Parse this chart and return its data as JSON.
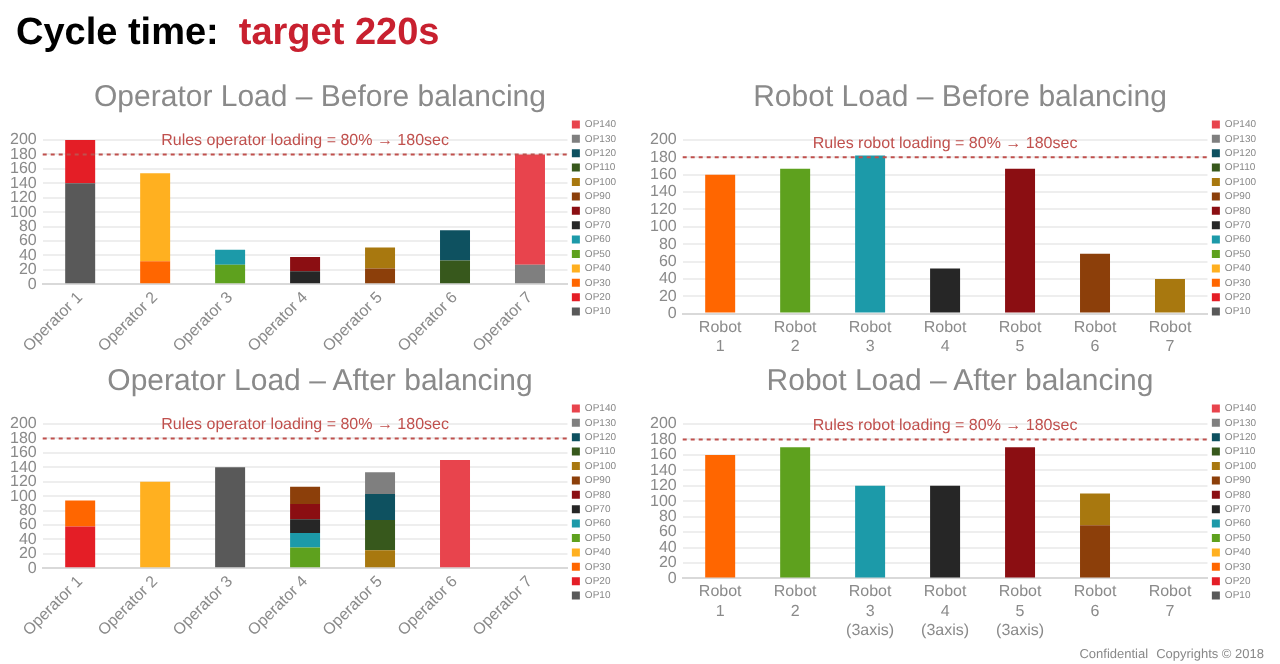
{
  "chart_data": [
    {
      "type": "bar",
      "title": "Operator Load – Before balancing",
      "stacked": true,
      "legend": "right",
      "grid": "y",
      "annotations": [
        "Cycle time:",
        "target 220s"
      ],
      "categories": [
        "Operator 1",
        "Operator 2",
        "Operator 3",
        "Operator 4",
        "Operator 5",
        "Operator 6",
        "Operator 7"
      ],
      "ylim": [
        0,
        200
      ],
      "yticks": [
        0,
        20,
        40,
        60,
        80,
        100,
        120,
        140,
        160,
        180,
        200
      ],
      "ref_lines": [
        {
          "axis": "y",
          "value": 180,
          "label": "Rules operator loading = 80% → 180sec",
          "color": "#c0504d",
          "line_style": "dotted"
        }
      ],
      "series": [
        {
          "name": "OP10",
          "color": "#595959",
          "values": [
            140,
            null,
            null,
            null,
            null,
            null,
            null
          ]
        },
        {
          "name": "OP20",
          "color": "#e41e26",
          "values": [
            60,
            null,
            null,
            null,
            null,
            null,
            null
          ]
        },
        {
          "name": "OP30",
          "color": "#ff6600",
          "values": [
            null,
            32,
            null,
            null,
            null,
            null,
            null
          ]
        },
        {
          "name": "OP40",
          "color": "#ffb020",
          "values": [
            null,
            122,
            null,
            null,
            null,
            null,
            null
          ]
        },
        {
          "name": "OP50",
          "color": "#5ea11e",
          "values": [
            null,
            null,
            27,
            null,
            null,
            null,
            null
          ]
        },
        {
          "name": "OP60",
          "color": "#1c9aa9",
          "values": [
            null,
            null,
            21,
            null,
            null,
            null,
            null
          ]
        },
        {
          "name": "OP70",
          "color": "#262626",
          "values": [
            null,
            null,
            null,
            18,
            null,
            null,
            null
          ]
        },
        {
          "name": "OP80",
          "color": "#8b0e12",
          "values": [
            null,
            null,
            null,
            20,
            null,
            null,
            null
          ]
        },
        {
          "name": "OP90",
          "color": "#8c3f0a",
          "values": [
            null,
            null,
            null,
            null,
            22,
            null,
            null
          ]
        },
        {
          "name": "OP100",
          "color": "#a8780f",
          "values": [
            null,
            null,
            null,
            null,
            29,
            null,
            null
          ]
        },
        {
          "name": "OP110",
          "color": "#37581c",
          "values": [
            null,
            null,
            null,
            null,
            null,
            33,
            null
          ]
        },
        {
          "name": "OP120",
          "color": "#0e5160",
          "values": [
            null,
            null,
            null,
            null,
            null,
            42,
            null
          ]
        },
        {
          "name": "OP130",
          "color": "#7f7f7f",
          "values": [
            null,
            null,
            null,
            null,
            null,
            null,
            27
          ]
        },
        {
          "name": "OP140",
          "color": "#e8444d",
          "values": [
            null,
            null,
            null,
            null,
            null,
            null,
            153
          ]
        }
      ]
    },
    {
      "type": "bar",
      "title": "Robot Load – Before balancing",
      "stacked": true,
      "legend": "right",
      "grid": "y",
      "categories": [
        "Robot 1",
        "Robot 2",
        "Robot 3",
        "Robot 4",
        "Robot 5",
        "Robot 6",
        "Robot 7"
      ],
      "ylim": [
        0,
        200
      ],
      "yticks": [
        0,
        20,
        40,
        60,
        80,
        100,
        120,
        140,
        160,
        180,
        200
      ],
      "ref_lines": [
        {
          "axis": "y",
          "value": 180,
          "label": "Rules robot loading = 80% → 180sec",
          "color": "#c0504d",
          "line_style": "dotted"
        }
      ],
      "series": [
        {
          "name": "OP10",
          "color": "#595959",
          "values": [
            null,
            null,
            null,
            null,
            null,
            null,
            null
          ]
        },
        {
          "name": "OP20",
          "color": "#e41e26",
          "values": [
            null,
            null,
            null,
            null,
            null,
            null,
            null
          ]
        },
        {
          "name": "OP30",
          "color": "#ff6600",
          "values": [
            160,
            null,
            null,
            null,
            null,
            null,
            null
          ]
        },
        {
          "name": "OP40",
          "color": "#ffb020",
          "values": [
            null,
            null,
            null,
            null,
            null,
            null,
            null
          ]
        },
        {
          "name": "OP50",
          "color": "#5ea11e",
          "values": [
            null,
            167,
            null,
            null,
            null,
            null,
            null
          ]
        },
        {
          "name": "OP60",
          "color": "#1c9aa9",
          "values": [
            null,
            null,
            182,
            null,
            null,
            null,
            null
          ]
        },
        {
          "name": "OP70",
          "color": "#262626",
          "values": [
            null,
            null,
            null,
            52,
            null,
            null,
            null
          ]
        },
        {
          "name": "OP80",
          "color": "#8b0e12",
          "values": [
            null,
            null,
            null,
            null,
            167,
            null,
            null
          ]
        },
        {
          "name": "OP90",
          "color": "#8c3f0a",
          "values": [
            null,
            null,
            null,
            null,
            null,
            69,
            null
          ]
        },
        {
          "name": "OP100",
          "color": "#a8780f",
          "values": [
            null,
            null,
            null,
            null,
            null,
            null,
            40
          ]
        },
        {
          "name": "OP110",
          "color": "#37581c",
          "values": [
            null,
            null,
            null,
            null,
            null,
            null,
            null
          ]
        },
        {
          "name": "OP120",
          "color": "#0e5160",
          "values": [
            null,
            null,
            null,
            null,
            null,
            null,
            null
          ]
        },
        {
          "name": "OP130",
          "color": "#7f7f7f",
          "values": [
            null,
            null,
            null,
            null,
            null,
            null,
            null
          ]
        },
        {
          "name": "OP140",
          "color": "#e8444d",
          "values": [
            null,
            null,
            null,
            null,
            null,
            null,
            null
          ]
        }
      ]
    },
    {
      "type": "bar",
      "title": "Operator Load – After balancing",
      "stacked": true,
      "legend": "right",
      "grid": "y",
      "categories": [
        "Operator 1",
        "Operator 2",
        "Operator 3",
        "Operator 4",
        "Operator 5",
        "Operator 6",
        "Operator 7"
      ],
      "ylim": [
        0,
        200
      ],
      "yticks": [
        0,
        20,
        40,
        60,
        80,
        100,
        120,
        140,
        160,
        180,
        200
      ],
      "ref_lines": [
        {
          "axis": "y",
          "value": 180,
          "label": "Rules operator loading = 80% → 180sec",
          "color": "#c0504d",
          "line_style": "dotted"
        }
      ],
      "series": [
        {
          "name": "OP10",
          "color": "#595959",
          "values": [
            null,
            null,
            140,
            null,
            null,
            null,
            null
          ]
        },
        {
          "name": "OP20",
          "color": "#e41e26",
          "values": [
            58,
            null,
            null,
            null,
            null,
            null,
            null
          ]
        },
        {
          "name": "OP30",
          "color": "#ff6600",
          "values": [
            36,
            null,
            null,
            null,
            null,
            null,
            null
          ]
        },
        {
          "name": "OP40",
          "color": "#ffb020",
          "values": [
            null,
            120,
            null,
            null,
            null,
            null,
            null
          ]
        },
        {
          "name": "OP50",
          "color": "#5ea11e",
          "values": [
            null,
            null,
            null,
            29,
            null,
            null,
            null
          ]
        },
        {
          "name": "OP60",
          "color": "#1c9aa9",
          "values": [
            null,
            null,
            null,
            20,
            null,
            null,
            null
          ]
        },
        {
          "name": "OP70",
          "color": "#262626",
          "values": [
            null,
            null,
            null,
            19,
            null,
            null,
            null
          ]
        },
        {
          "name": "OP80",
          "color": "#8b0e12",
          "values": [
            null,
            null,
            null,
            21,
            null,
            null,
            null
          ]
        },
        {
          "name": "OP90",
          "color": "#8c3f0a",
          "values": [
            null,
            null,
            null,
            24,
            null,
            null,
            null
          ]
        },
        {
          "name": "OP100",
          "color": "#a8780f",
          "values": [
            null,
            null,
            null,
            null,
            25,
            null,
            null
          ]
        },
        {
          "name": "OP110",
          "color": "#37581c",
          "values": [
            null,
            null,
            null,
            null,
            42,
            null,
            null
          ]
        },
        {
          "name": "OP120",
          "color": "#0e5160",
          "values": [
            null,
            null,
            null,
            null,
            36,
            null,
            null
          ]
        },
        {
          "name": "OP130",
          "color": "#7f7f7f",
          "values": [
            null,
            null,
            null,
            null,
            30,
            null,
            null
          ]
        },
        {
          "name": "OP140",
          "color": "#e8444d",
          "values": [
            null,
            null,
            null,
            null,
            null,
            150,
            null
          ]
        }
      ]
    },
    {
      "type": "bar",
      "title": "Robot Load – After balancing",
      "stacked": true,
      "legend": "right",
      "grid": "y",
      "annotations": [
        "Confidential",
        "Copyrights © 2018"
      ],
      "categories": [
        "Robot 1",
        "Robot 2",
        "Robot 3 (3axis)",
        "Robot 4 (3axis)",
        "Robot 5 (3axis)",
        "Robot 6",
        "Robot 7"
      ],
      "ylim": [
        0,
        200
      ],
      "yticks": [
        0,
        20,
        40,
        60,
        80,
        100,
        120,
        140,
        160,
        180,
        200
      ],
      "ref_lines": [
        {
          "axis": "y",
          "value": 180,
          "label": "Rules robot loading = 80% → 180sec",
          "color": "#c0504d",
          "line_style": "dotted"
        }
      ],
      "series": [
        {
          "name": "OP10",
          "color": "#595959",
          "values": [
            null,
            null,
            null,
            null,
            null,
            null,
            null
          ]
        },
        {
          "name": "OP20",
          "color": "#e41e26",
          "values": [
            null,
            null,
            null,
            null,
            null,
            null,
            null
          ]
        },
        {
          "name": "OP30",
          "color": "#ff6600",
          "values": [
            160,
            null,
            null,
            null,
            null,
            null,
            null
          ]
        },
        {
          "name": "OP40",
          "color": "#ffb020",
          "values": [
            null,
            null,
            null,
            null,
            null,
            null,
            null
          ]
        },
        {
          "name": "OP50",
          "color": "#5ea11e",
          "values": [
            null,
            170,
            null,
            null,
            null,
            null,
            null
          ]
        },
        {
          "name": "OP60",
          "color": "#1c9aa9",
          "values": [
            null,
            null,
            120,
            null,
            null,
            null,
            null
          ]
        },
        {
          "name": "OP70",
          "color": "#262626",
          "values": [
            null,
            null,
            null,
            120,
            null,
            null,
            null
          ]
        },
        {
          "name": "OP80",
          "color": "#8b0e12",
          "values": [
            null,
            null,
            null,
            null,
            170,
            null,
            null
          ]
        },
        {
          "name": "OP90",
          "color": "#8c3f0a",
          "values": [
            null,
            null,
            null,
            null,
            null,
            69,
            null
          ]
        },
        {
          "name": "OP100",
          "color": "#a8780f",
          "values": [
            null,
            null,
            null,
            null,
            null,
            41,
            null
          ]
        },
        {
          "name": "OP110",
          "color": "#37581c",
          "values": [
            null,
            null,
            null,
            null,
            null,
            null,
            null
          ]
        },
        {
          "name": "OP120",
          "color": "#0e5160",
          "values": [
            null,
            null,
            null,
            null,
            null,
            null,
            null
          ]
        },
        {
          "name": "OP130",
          "color": "#7f7f7f",
          "values": [
            null,
            null,
            null,
            null,
            null,
            null,
            null
          ]
        },
        {
          "name": "OP140",
          "color": "#e8444d",
          "values": [
            null,
            null,
            null,
            null,
            null,
            null,
            null
          ]
        }
      ]
    }
  ]
}
